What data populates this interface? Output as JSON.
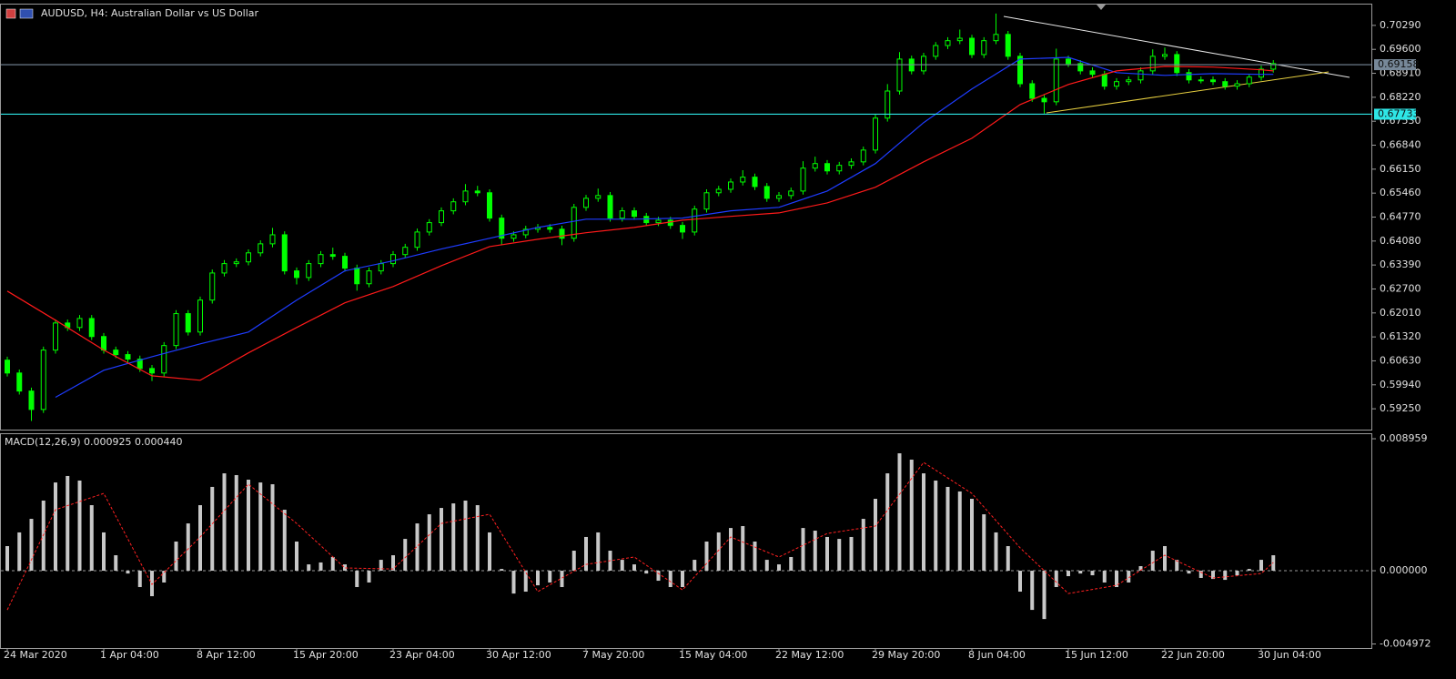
{
  "chart_data": [
    {
      "type": "candlestick",
      "title": "AUDUSD, H4:  Australian Dollar vs US Dollar",
      "color": "#00ff00",
      "categories": [
        "24 Mar 2020",
        null,
        null,
        null,
        null,
        null,
        null,
        null,
        "1 Apr 04:00",
        null,
        null,
        null,
        null,
        null,
        null,
        null,
        "8 Apr 12:00",
        null,
        null,
        null,
        null,
        null,
        null,
        null,
        "15 Apr 20:00",
        null,
        null,
        null,
        null,
        null,
        null,
        null,
        "23 Apr 04:00",
        null,
        null,
        null,
        null,
        null,
        null,
        null,
        "30 Apr 12:00",
        null,
        null,
        null,
        null,
        null,
        null,
        null,
        "7 May 20:00",
        null,
        null,
        null,
        null,
        null,
        null,
        null,
        "15 May 04:00",
        null,
        null,
        null,
        null,
        null,
        null,
        null,
        "22 May 12:00",
        null,
        null,
        null,
        null,
        null,
        null,
        null,
        "29 May 20:00",
        null,
        null,
        null,
        null,
        null,
        null,
        null,
        "8 Jun 04:00",
        null,
        null,
        null,
        null,
        null,
        null,
        null,
        "15 Jun 12:00",
        null,
        null,
        null,
        null,
        null,
        null,
        null,
        "22 Jun 20:00",
        null,
        null,
        null,
        null,
        null,
        null,
        null,
        "30 Jun 04:00",
        null
      ],
      "open": [
        0.6065,
        0.6028,
        0.5976,
        0.5923,
        0.6094,
        0.6172,
        0.6159,
        0.6185,
        0.6133,
        0.6094,
        0.6081,
        0.6068,
        0.6041,
        0.6028,
        0.6107,
        0.6199,
        0.6146,
        0.6238,
        0.6316,
        0.6343,
        0.6348,
        0.6374,
        0.64,
        0.6426,
        0.6322,
        0.6303,
        0.6343,
        0.6369,
        0.6364,
        0.633,
        0.6285,
        0.6322,
        0.6343,
        0.6369,
        0.639,
        0.6434,
        0.6461,
        0.6495,
        0.6521,
        0.6552,
        0.6547,
        0.6474,
        0.6416,
        0.6426,
        0.6442,
        0.6447,
        0.6442,
        0.6416,
        0.6505,
        0.6531,
        0.6539,
        0.6474,
        0.6495,
        0.6479,
        0.6461,
        0.6468,
        0.6453,
        0.6434,
        0.65,
        0.6547,
        0.6557,
        0.6578,
        0.6592,
        0.6565,
        0.6531,
        0.6539,
        0.6552,
        0.6618,
        0.6631,
        0.661,
        0.6626,
        0.6636,
        0.667,
        0.6762,
        0.684,
        0.6932,
        0.6898,
        0.694,
        0.6971,
        0.6985,
        0.6992,
        0.6945,
        0.6985,
        0.7003,
        0.694,
        0.6861,
        0.6819,
        0.6809,
        0.6932,
        0.6919,
        0.6898,
        0.6888,
        0.6854,
        0.6867,
        0.6872,
        0.6898,
        0.694,
        0.6945,
        0.6893,
        0.6872,
        0.6872,
        0.6867,
        0.6854,
        0.6861,
        0.688,
        0.6903
      ],
      "high": [
        0.6075,
        0.6038,
        0.5986,
        0.6104,
        0.6182,
        0.6182,
        0.6195,
        0.6195,
        0.6143,
        0.6104,
        0.6091,
        0.6078,
        0.6051,
        0.6117,
        0.6209,
        0.6209,
        0.6248,
        0.6326,
        0.6353,
        0.6358,
        0.6384,
        0.641,
        0.6446,
        0.6436,
        0.6332,
        0.6353,
        0.6379,
        0.6389,
        0.6374,
        0.634,
        0.6332,
        0.6353,
        0.6379,
        0.64,
        0.6444,
        0.6471,
        0.6505,
        0.6531,
        0.6572,
        0.6567,
        0.6557,
        0.6484,
        0.6436,
        0.6452,
        0.6457,
        0.6457,
        0.6452,
        0.6515,
        0.6541,
        0.6559,
        0.6549,
        0.6505,
        0.6505,
        0.6489,
        0.6478,
        0.6478,
        0.6463,
        0.651,
        0.6557,
        0.6567,
        0.6588,
        0.6612,
        0.6602,
        0.6575,
        0.6549,
        0.6562,
        0.6638,
        0.6651,
        0.6641,
        0.6636,
        0.6646,
        0.668,
        0.6772,
        0.686,
        0.6952,
        0.6942,
        0.695,
        0.6981,
        0.6995,
        0.7017,
        0.7002,
        0.6995,
        0.7063,
        0.7013,
        0.695,
        0.6871,
        0.6829,
        0.6962,
        0.6942,
        0.6929,
        0.6908,
        0.6898,
        0.6877,
        0.6882,
        0.6908,
        0.696,
        0.6965,
        0.6955,
        0.6903,
        0.6882,
        0.6882,
        0.6877,
        0.6871,
        0.689,
        0.6913,
        0.6929
      ],
      "low": [
        0.6018,
        0.5966,
        0.589,
        0.5913,
        0.6084,
        0.6149,
        0.6149,
        0.6123,
        0.6084,
        0.6071,
        0.6058,
        0.6031,
        0.6005,
        0.6018,
        0.6097,
        0.6136,
        0.6136,
        0.6228,
        0.6306,
        0.6333,
        0.6338,
        0.6364,
        0.639,
        0.6312,
        0.6283,
        0.6293,
        0.6333,
        0.6354,
        0.632,
        0.6265,
        0.6275,
        0.6312,
        0.6333,
        0.6359,
        0.638,
        0.6424,
        0.6451,
        0.6485,
        0.6511,
        0.6537,
        0.6464,
        0.6396,
        0.6406,
        0.6416,
        0.6432,
        0.6432,
        0.6396,
        0.6406,
        0.6495,
        0.6521,
        0.6464,
        0.6464,
        0.6469,
        0.6451,
        0.6451,
        0.6443,
        0.6414,
        0.6424,
        0.649,
        0.6537,
        0.6547,
        0.6568,
        0.6555,
        0.6521,
        0.6521,
        0.6529,
        0.6542,
        0.6608,
        0.66,
        0.66,
        0.6616,
        0.6626,
        0.666,
        0.6752,
        0.683,
        0.6888,
        0.6888,
        0.693,
        0.6961,
        0.6975,
        0.6935,
        0.6935,
        0.6975,
        0.693,
        0.6851,
        0.6809,
        0.6775,
        0.6799,
        0.6909,
        0.6888,
        0.6878,
        0.6844,
        0.6844,
        0.6857,
        0.6862,
        0.6888,
        0.693,
        0.6883,
        0.6862,
        0.6862,
        0.6857,
        0.6844,
        0.6844,
        0.6851,
        0.687,
        0.6893
      ],
      "close": [
        0.6028,
        0.5976,
        0.5923,
        0.6094,
        0.6172,
        0.6159,
        0.6185,
        0.6133,
        0.6094,
        0.6081,
        0.6068,
        0.6041,
        0.6028,
        0.6107,
        0.6199,
        0.6146,
        0.6238,
        0.6316,
        0.6343,
        0.6348,
        0.6374,
        0.64,
        0.6426,
        0.6322,
        0.6303,
        0.6343,
        0.6369,
        0.6364,
        0.633,
        0.6285,
        0.6322,
        0.6343,
        0.6369,
        0.639,
        0.6434,
        0.6461,
        0.6495,
        0.6521,
        0.6552,
        0.6547,
        0.6474,
        0.6416,
        0.6426,
        0.6442,
        0.6447,
        0.6442,
        0.6416,
        0.6505,
        0.6531,
        0.6539,
        0.6474,
        0.6495,
        0.6479,
        0.6461,
        0.6468,
        0.6453,
        0.6434,
        0.65,
        0.6547,
        0.6557,
        0.6578,
        0.6592,
        0.6565,
        0.6531,
        0.6539,
        0.6552,
        0.6618,
        0.6631,
        0.661,
        0.6626,
        0.6636,
        0.667,
        0.6762,
        0.684,
        0.6932,
        0.6898,
        0.694,
        0.6971,
        0.6985,
        0.6992,
        0.6945,
        0.6985,
        0.7003,
        0.694,
        0.6861,
        0.6819,
        0.6809,
        0.6932,
        0.6919,
        0.6898,
        0.6888,
        0.6854,
        0.6867,
        0.6872,
        0.6898,
        0.694,
        0.6945,
        0.6893,
        0.6872,
        0.6872,
        0.6867,
        0.6854,
        0.6861,
        0.688,
        0.6903,
        0.6919
      ],
      "lines": [
        {
          "color": "#1e3cff",
          "x": [
            4,
            8,
            12,
            16,
            20,
            24,
            28,
            32,
            36,
            40,
            44,
            48,
            52,
            56,
            60,
            64,
            68,
            72,
            76,
            80,
            84,
            88,
            92,
            96,
            100,
            104,
            105
          ],
          "values": [
            0.5958,
            0.6036,
            0.6075,
            0.6112,
            0.6146,
            0.6238,
            0.6322,
            0.6351,
            0.6385,
            0.6416,
            0.6447,
            0.6471,
            0.6471,
            0.6474,
            0.6495,
            0.6505,
            0.6552,
            0.6631,
            0.6749,
            0.6846,
            0.6932,
            0.6937,
            0.6893,
            0.6885,
            0.689,
            0.6888,
            0.6888
          ]
        },
        {
          "color": "#ff1a1a",
          "x": [
            0,
            4,
            8,
            12,
            16,
            20,
            24,
            28,
            32,
            36,
            40,
            44,
            48,
            52,
            56,
            60,
            64,
            68,
            72,
            76,
            80,
            84,
            88,
            92,
            96,
            100,
            104,
            105
          ],
          "values": [
            0.6264,
            0.618,
            0.6094,
            0.602,
            0.6007,
            0.6086,
            0.6159,
            0.623,
            0.6277,
            0.6337,
            0.6392,
            0.6413,
            0.6432,
            0.6447,
            0.6468,
            0.6479,
            0.6489,
            0.6518,
            0.6563,
            0.6636,
            0.6704,
            0.6801,
            0.6859,
            0.6898,
            0.6911,
            0.6909,
            0.6901,
            0.6898
          ]
        }
      ],
      "levels": [
        {
          "value": 0.69158,
          "color": "#778899"
        },
        {
          "value": 0.67733,
          "color": "#2ee6e6"
        }
      ],
      "ylim": [
        0.5865,
        0.7089
      ],
      "yticks": [
        {
          "value": 0.7029,
          "label": "0.70290"
        },
        {
          "value": 0.696,
          "label": "0.69600"
        },
        {
          "value": 0.6891,
          "label": "0.68910"
        },
        {
          "value": 0.6822,
          "label": "0.68220"
        },
        {
          "value": 0.6753,
          "label": "0.67530"
        },
        {
          "value": 0.6684,
          "label": "0.66840"
        },
        {
          "value": 0.6615,
          "label": "0.66150"
        },
        {
          "value": 0.6546,
          "label": "0.65460"
        },
        {
          "value": 0.6477,
          "label": "0.64770"
        },
        {
          "value": 0.6408,
          "label": "0.64080"
        },
        {
          "value": 0.6339,
          "label": "0.63390"
        },
        {
          "value": 0.627,
          "label": "0.62700"
        },
        {
          "value": 0.6201,
          "label": "0.62010"
        },
        {
          "value": 0.6132,
          "label": "0.61320"
        },
        {
          "value": 0.6063,
          "label": "0.60630"
        },
        {
          "value": 0.5994,
          "label": "0.59940"
        },
        {
          "value": 0.5925,
          "label": "0.59250"
        }
      ]
    },
    {
      "type": "bar",
      "title": "MACD(12,26,9) 0.000925 0.000440",
      "color": "#c8c8c8",
      "values": [
        0.00167,
        0.0026,
        0.00352,
        0.00476,
        0.00599,
        0.00643,
        0.00612,
        0.00445,
        0.0026,
        0.00105,
        -0.00019,
        -0.00111,
        -0.00173,
        -0.0008,
        0.00198,
        0.00321,
        0.00445,
        0.00569,
        0.00661,
        0.00649,
        0.00618,
        0.00599,
        0.00587,
        0.00414,
        0.00198,
        0.00043,
        0.00056,
        0.00093,
        0.00043,
        -0.00111,
        -0.0008,
        0.00074,
        0.00105,
        0.00216,
        0.00321,
        0.00383,
        0.00426,
        0.00457,
        0.00476,
        0.00445,
        0.0026,
        0.00012,
        -0.00155,
        -0.00142,
        -0.00099,
        -0.0008,
        -0.00111,
        0.00136,
        0.00229,
        0.0026,
        0.00136,
        0.00074,
        0.00043,
        -0.00019,
        -0.00068,
        -0.00111,
        -0.00111,
        0.00074,
        0.00198,
        0.0026,
        0.0029,
        0.00303,
        0.00198,
        0.00074,
        0.00043,
        0.00093,
        0.0029,
        0.00272,
        0.00229,
        0.00216,
        0.00229,
        0.00352,
        0.00488,
        0.00661,
        0.00797,
        0.00754,
        0.00661,
        0.00612,
        0.00569,
        0.00538,
        0.00488,
        0.00383,
        0.0026,
        0.00167,
        -0.00142,
        -0.00266,
        -0.00328,
        -0.00111,
        -0.00037,
        -0.00019,
        -0.00031,
        -0.0008,
        -0.00111,
        -0.0008,
        0.00031,
        0.00136,
        0.00167,
        0.00074,
        -0.00019,
        -0.00049,
        -0.00056,
        -0.00062,
        -0.00031,
        0.00012,
        0.00074,
        0.00105
      ],
      "signal": {
        "color": "#ff2020",
        "x": [
          0,
          4,
          8,
          12,
          16,
          20,
          24,
          28,
          32,
          36,
          40,
          44,
          48,
          52,
          56,
          60,
          64,
          68,
          72,
          76,
          80,
          84,
          88,
          92,
          96,
          100,
          104,
          105
        ],
        "values": [
          -0.00266,
          0.00414,
          0.00525,
          -0.00093,
          0.00229,
          0.00587,
          0.00321,
          0.00019,
          0.00012,
          0.00321,
          0.00383,
          -0.00142,
          0.00043,
          0.00093,
          -0.0013,
          0.00229,
          0.00093,
          0.00253,
          0.00303,
          0.00735,
          0.00525,
          0.00155,
          -0.00155,
          -0.00099,
          0.00105,
          -0.00049,
          -0.00019,
          0.00056
        ]
      },
      "zero_line": true,
      "ylim": [
        -0.00525,
        0.00927
      ],
      "yticks": [
        0.008959,
        {
          "value": 0,
          "label": "0.000000"
        },
        -0.004972
      ]
    }
  ]
}
